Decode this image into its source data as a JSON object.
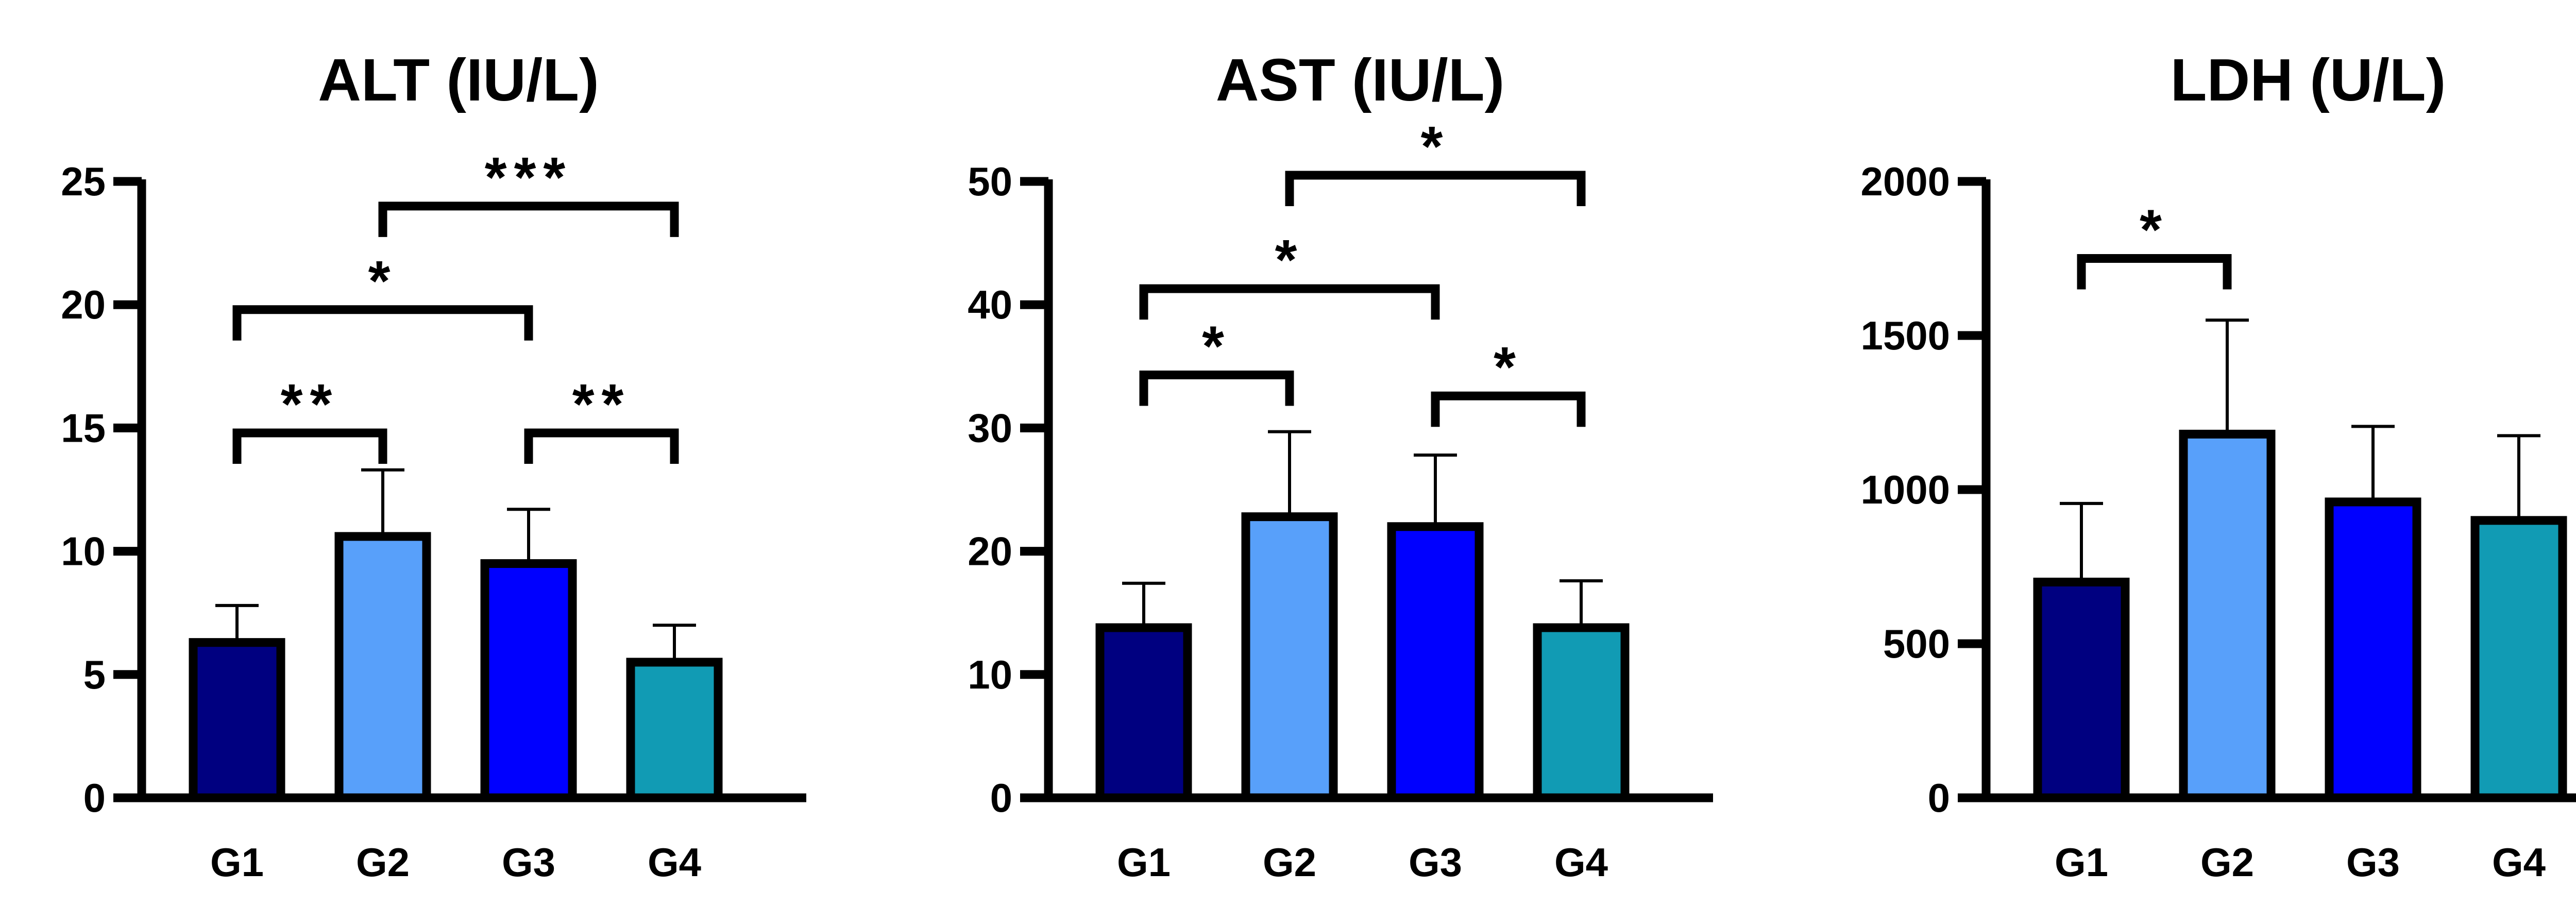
{
  "chart_data": [
    {
      "type": "bar",
      "title": "ALT (IU/L)",
      "xlabel": "",
      "ylabel": "",
      "categories": [
        "G1",
        "G2",
        "G3",
        "G4"
      ],
      "values": [
        6.3,
        10.6,
        9.5,
        5.5
      ],
      "error": [
        1.5,
        2.7,
        2.2,
        1.5
      ],
      "ylim": [
        0,
        25
      ],
      "yticks": [
        0,
        5,
        10,
        15,
        20,
        25
      ],
      "bar_colors": [
        "#000080",
        "#58a0fa",
        "#0000ff",
        "#119bb4"
      ],
      "significance": [
        {
          "from": "G1",
          "to": "G2",
          "label": "**",
          "y": 14.8
        },
        {
          "from": "G3",
          "to": "G4",
          "label": "**",
          "y": 14.8
        },
        {
          "from": "G1",
          "to": "G3",
          "label": "*",
          "y": 19.8
        },
        {
          "from": "G2",
          "to": "G4",
          "label": "***",
          "y": 24.0
        }
      ]
    },
    {
      "type": "bar",
      "title": "AST (IU/L)",
      "xlabel": "",
      "ylabel": "",
      "categories": [
        "G1",
        "G2",
        "G3",
        "G4"
      ],
      "values": [
        13.8,
        22.8,
        22.0,
        13.8
      ],
      "error": [
        3.6,
        6.9,
        5.8,
        3.8
      ],
      "ylim": [
        0,
        50
      ],
      "yticks": [
        0,
        10,
        20,
        30,
        40,
        50
      ],
      "bar_colors": [
        "#000080",
        "#58a0fa",
        "#0000ff",
        "#119bb4"
      ],
      "significance": [
        {
          "from": "G1",
          "to": "G2",
          "label": "*",
          "y": 34.3
        },
        {
          "from": "G3",
          "to": "G4",
          "label": "*",
          "y": 32.6
        },
        {
          "from": "G1",
          "to": "G3",
          "label": "*",
          "y": 41.3
        },
        {
          "from": "G2",
          "to": "G4",
          "label": "*",
          "y": 50.5
        }
      ]
    },
    {
      "type": "bar",
      "title": "LDH (U/L)",
      "xlabel": "",
      "ylabel": "",
      "categories": [
        "G1",
        "G2",
        "G3",
        "G4"
      ],
      "values": [
        700,
        1180,
        960,
        900
      ],
      "error": [
        255,
        370,
        245,
        275
      ],
      "ylim": [
        0,
        2000
      ],
      "yticks": [
        0,
        500,
        1000,
        1500,
        2000
      ],
      "bar_colors": [
        "#000080",
        "#58a0fa",
        "#0000ff",
        "#119bb4"
      ],
      "significance": [
        {
          "from": "G1",
          "to": "G2",
          "label": "*",
          "y": 1750
        }
      ]
    }
  ]
}
